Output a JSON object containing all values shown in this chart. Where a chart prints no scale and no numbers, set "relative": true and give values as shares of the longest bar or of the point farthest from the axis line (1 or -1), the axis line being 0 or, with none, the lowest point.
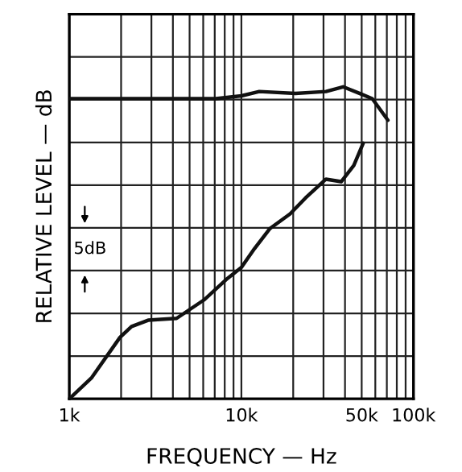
{
  "chart_data": {
    "type": "line",
    "xlabel": "FREQUENCY — Hz",
    "ylabel": "RELATIVE LEVEL — dB",
    "relative": true,
    "log": "x",
    "grid": true,
    "xlim": [
      1000,
      100000
    ],
    "xticks": [
      {
        "value": 1000,
        "label": "1k"
      },
      {
        "value": 10000,
        "label": "10k"
      },
      {
        "value": 50000,
        "label": "50k"
      },
      {
        "value": 100000,
        "label": "100k"
      }
    ],
    "annotations": [
      "5dB"
    ],
    "series": [
      {
        "color": "#111111",
        "x": [
          1000,
          7100,
          10000,
          12700,
          20600,
          31000,
          39000,
          48500,
          57600,
          71000
        ],
        "values": [
          0.962,
          0.962,
          0.971,
          0.985,
          0.979,
          0.985,
          1,
          0.979,
          0.962,
          0.893
        ]
      },
      {
        "color": "#111111",
        "x": [
          1000,
          1350,
          1970,
          2300,
          2870,
          4200,
          6100,
          8300,
          10000,
          11900,
          14600,
          19200,
          23600,
          31000,
          38000,
          45000,
          51000
        ],
        "values": [
          0,
          0.068,
          0.197,
          0.232,
          0.252,
          0.258,
          0.318,
          0.386,
          0.421,
          0.481,
          0.545,
          0.593,
          0.644,
          0.704,
          0.696,
          0.748,
          0.819
        ]
      }
    ]
  }
}
